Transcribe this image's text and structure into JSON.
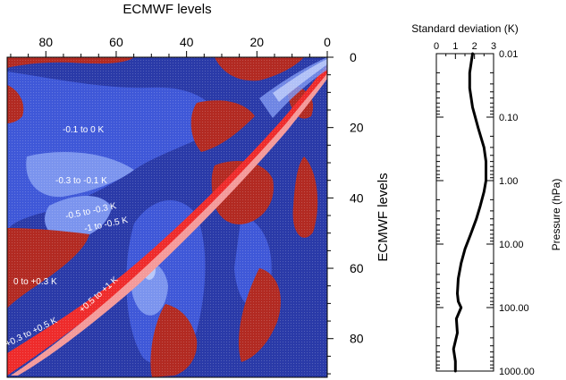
{
  "chart_data": [
    {
      "type": "heatmap",
      "xlabel": "ECMWF levels",
      "ylabel": "ECMWF levels",
      "x_ticks": [
        "80",
        "60",
        "40",
        "20",
        "0"
      ],
      "y_ticks": [
        "0",
        "20",
        "40",
        "60",
        "80"
      ],
      "xlim": [
        91,
        0
      ],
      "ylim": [
        0,
        91
      ],
      "x_axis_position": "top",
      "y_axis_position": "right",
      "colors": {
        "dark_red": "#b22a22",
        "red": "#ee2b2b",
        "light_red": "#f49a9a",
        "dark_blue": "#2a3aa8",
        "blue": "#3f58d8",
        "light_blue": "#7b94ee",
        "pale_blue": "#b8c8f8"
      },
      "annotations": [
        "-0.1 to 0 K",
        "-0.3 to -0.1 K",
        "-0.5 to -0.3 K",
        "-1 to -0.5 K",
        "0 to +0.3 K",
        "+0.5 to +1 K",
        "+0.3 to +0.5 K"
      ]
    },
    {
      "type": "line",
      "title": "Standard deviation (K)",
      "xlabel": "Standard deviation (K)",
      "ylabel": "Pressure (hPa)",
      "x_ticks": [
        "0",
        "1",
        "2",
        "3"
      ],
      "y_ticks": [
        "0.01",
        "0.10",
        "1.00",
        "10.00",
        "100.00",
        "1000.00"
      ],
      "xlim": [
        0,
        3
      ],
      "ylim": [
        0.01,
        1000
      ],
      "y_scale": "log",
      "y_reversed": true,
      "series": [
        {
          "color": "#000000",
          "x": [
            1.9,
            1.75,
            1.75,
            1.9,
            2.2,
            2.5,
            2.6,
            2.6,
            2.5,
            2.3,
            2.1,
            1.8,
            1.5,
            1.3,
            1.15,
            1.1,
            1.15,
            1.3,
            1.05,
            1.1,
            0.9,
            1.0,
            1.0
          ],
          "y": [
            0.01,
            0.02,
            0.035,
            0.07,
            0.15,
            0.3,
            0.5,
            1.0,
            1.5,
            2.5,
            4.0,
            7.0,
            12.0,
            20.0,
            35.0,
            60.0,
            80.0,
            100.0,
            150.0,
            250.0,
            450.0,
            700.0,
            1000.0
          ]
        }
      ]
    }
  ]
}
